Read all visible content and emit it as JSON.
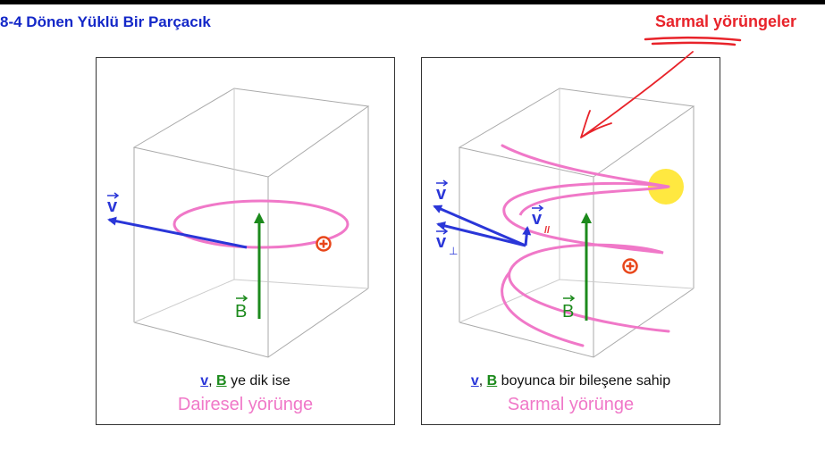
{
  "header": {
    "title": "8-4 Dönen Yüklü Bir Parçacık",
    "annotation": "Sarmal yörüngeler"
  },
  "panel_left": {
    "v_label": "v",
    "b_label": "B",
    "caption_v": "v",
    "caption_sep": ",",
    "caption_b": "B",
    "caption_text": "ye dik ise",
    "caption_title": "Dairesel yörünge"
  },
  "panel_right": {
    "v_label": "v",
    "vperp_label": "v",
    "vperp_sub": "⊥",
    "vpar_label": "v",
    "vpar_sub": "//",
    "b_label": "B",
    "caption_v": "v",
    "caption_sep": ",",
    "caption_b": "B",
    "caption_text": "boyunca bir bileşene sahip",
    "caption_title": "Sarmal yörünge"
  },
  "colors": {
    "title": "#1428c8",
    "annotation": "#e8232a",
    "velocity": "#2a36d8",
    "field": "#1c8a1c",
    "orbit": "#f078c8",
    "charge": "#e8461a",
    "highlight": "#ffe000"
  }
}
